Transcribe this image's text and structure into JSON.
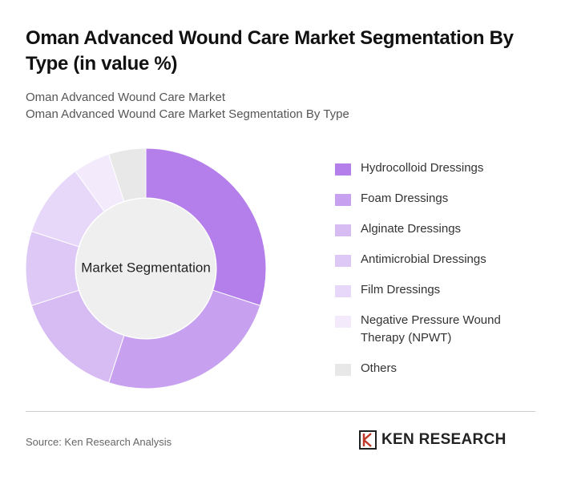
{
  "chart_data": {
    "type": "donut",
    "title": "Oman Advanced Wound Care Market Segmentation By Type (in value %)",
    "subtitle": [
      "Oman Advanced Wound Care Market",
      "Oman Advanced Wound Care Market Segmentation By Type"
    ],
    "center_label": "Market Segmentation",
    "categories": [
      "Hydrocolloid Dressings",
      "Foam Dressings",
      "Alginate Dressings",
      "Antimicrobial Dressings",
      "Film Dressings",
      "Negative Pressure Wound Therapy (NPWT)",
      "Others"
    ],
    "values": [
      30,
      25,
      15,
      10,
      10,
      5,
      5
    ],
    "colors": [
      "#b47fea",
      "#c7a0f0",
      "#d7bcf4",
      "#ddc8f6",
      "#e7d8f9",
      "#f3ebfc",
      "#e8e8e8"
    ],
    "source": "Source: Ken Research Analysis",
    "brand": "KEN RESEARCH"
  }
}
